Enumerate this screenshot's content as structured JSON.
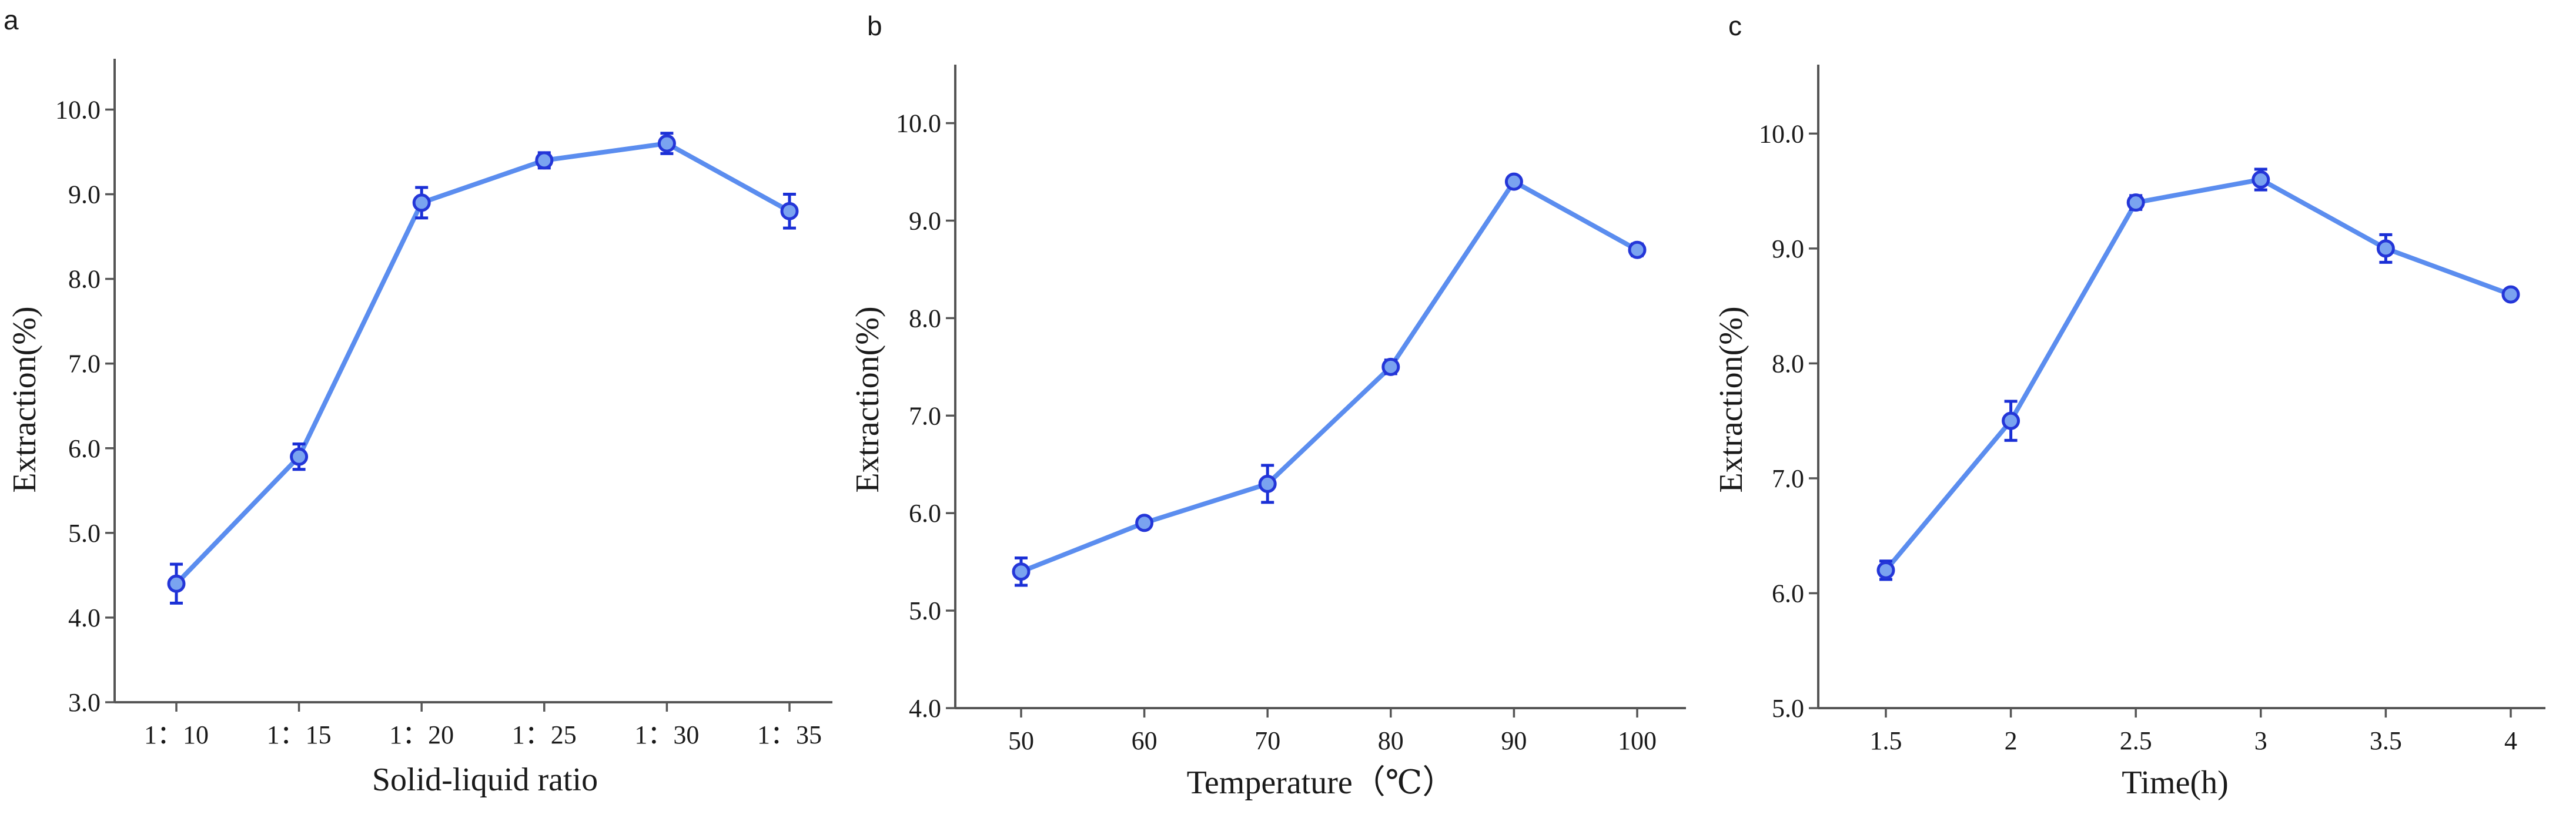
{
  "colors": {
    "line": "#5b8def",
    "marker_fill": "#7aa3f0",
    "marker_edge": "#2436d8",
    "error_bar": "#1a2fd6",
    "axis": "#555555",
    "text": "#1a1a1a"
  },
  "chart_data": [
    {
      "panel": "a",
      "type": "line",
      "title": "",
      "xlabel": "Solid-liquid ratio",
      "ylabel": "Extraction(%)",
      "categories": [
        "1：10",
        "1：15",
        "1：20",
        "1：25",
        "1：30",
        "1：35"
      ],
      "values": [
        4.4,
        5.9,
        8.9,
        9.4,
        9.6,
        8.8
      ],
      "errors": [
        0.23,
        0.15,
        0.18,
        0.09,
        0.12,
        0.2
      ],
      "ylim": [
        3.0,
        10.6
      ],
      "yticks": [
        "3.0",
        "4.0",
        "5.0",
        "6.0",
        "7.0",
        "8.0",
        "9.0",
        "10.0"
      ],
      "grid": false
    },
    {
      "panel": "b",
      "type": "line",
      "title": "",
      "xlabel": "Temperature（℃）",
      "ylabel": "Extraction(%)",
      "categories": [
        "50",
        "60",
        "70",
        "80",
        "90",
        "100"
      ],
      "values": [
        5.4,
        5.9,
        6.3,
        7.5,
        9.4,
        8.7
      ],
      "errors": [
        0.14,
        0.05,
        0.19,
        0.07,
        0.04,
        0.06
      ],
      "ylim": [
        4.0,
        10.6
      ],
      "yticks": [
        "4.0",
        "5.0",
        "6.0",
        "7.0",
        "8.0",
        "9.0",
        "10.0"
      ],
      "grid": false
    },
    {
      "panel": "c",
      "type": "line",
      "title": "",
      "xlabel": "Time(h)",
      "ylabel": "Extraction(%)",
      "categories": [
        "1.5",
        "2",
        "2.5",
        "3",
        "3.5",
        "4"
      ],
      "values": [
        6.2,
        7.5,
        9.4,
        9.6,
        9.0,
        8.6
      ],
      "errors": [
        0.08,
        0.17,
        0.06,
        0.09,
        0.12,
        0.04
      ],
      "ylim": [
        5.0,
        10.6
      ],
      "yticks": [
        "5.0",
        "6.0",
        "7.0",
        "8.0",
        "9.0",
        "10.0"
      ],
      "grid": false
    }
  ]
}
